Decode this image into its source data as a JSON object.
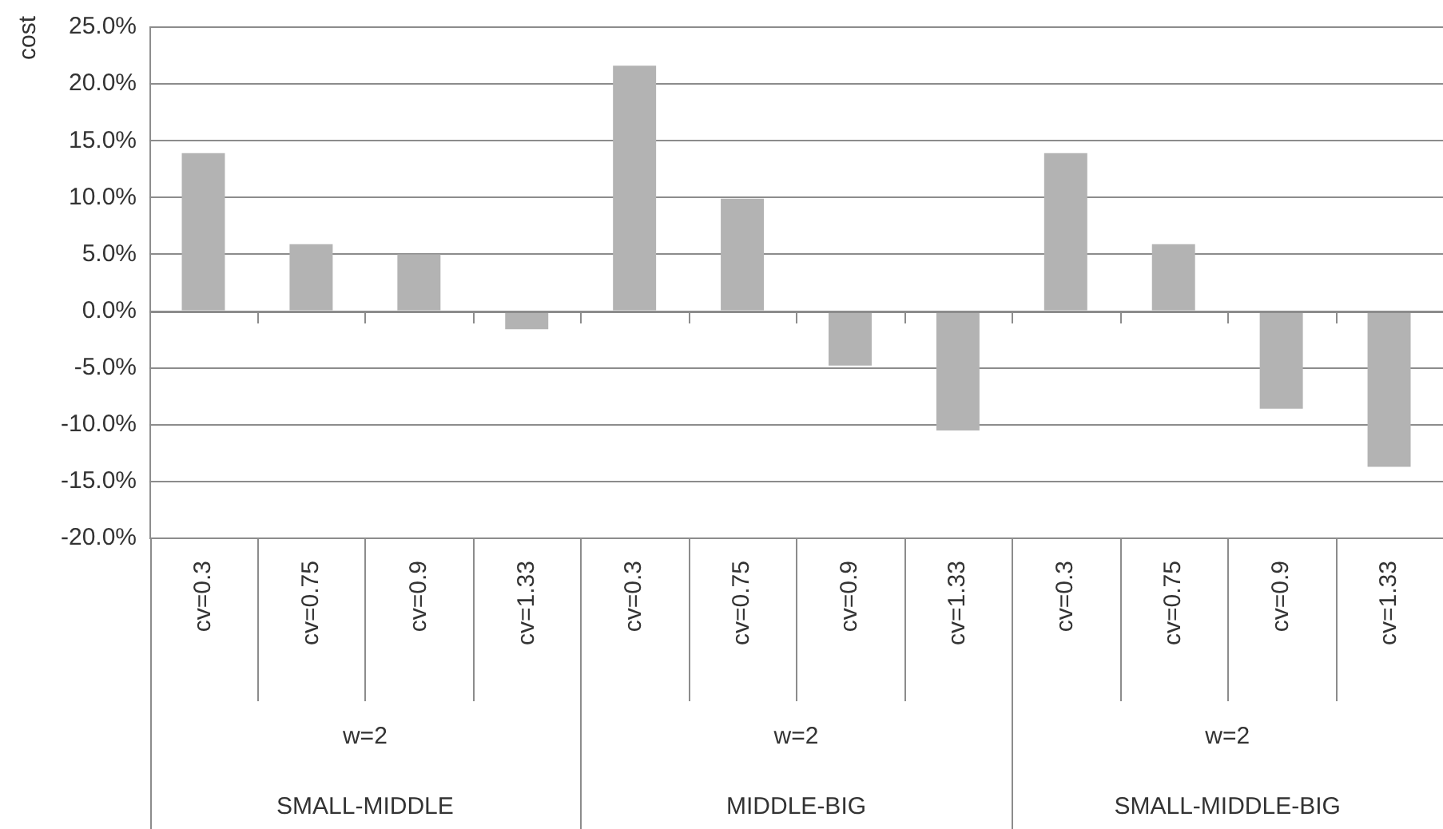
{
  "chart_data": {
    "type": "bar",
    "ylabel": "cost",
    "categories": [
      "cv=0.3",
      "cv=0.75",
      "cv=0.9",
      "cv=1.33",
      "cv=0.3",
      "cv=0.75",
      "cv=0.9",
      "cv=1.33",
      "cv=0.3",
      "cv=0.75",
      "cv=0.9",
      "cv=1.33"
    ],
    "values": [
      13.9,
      5.9,
      5.0,
      -1.6,
      21.6,
      9.9,
      -4.8,
      -10.5,
      13.9,
      5.9,
      -8.6,
      -13.7
    ],
    "color": "#b3b3b3",
    "ylim": [
      -20,
      25
    ],
    "yticks": [
      {
        "value": -20,
        "label": "-20.0%"
      },
      {
        "value": -15,
        "label": "-15.0%"
      },
      {
        "value": -10,
        "label": "-10.0%"
      },
      {
        "value": -5,
        "label": "-5.0%"
      },
      {
        "value": 0,
        "label": "0.0%"
      },
      {
        "value": 5,
        "label": "5.0%"
      },
      {
        "value": 10,
        "label": "10.0%"
      },
      {
        "value": 15,
        "label": "15.0%"
      },
      {
        "value": 20,
        "label": "20.0%"
      },
      {
        "value": 25,
        "label": "25.0%"
      }
    ],
    "grid": "y",
    "annotations": [
      "w=2",
      "w=2",
      "w=2",
      "SMALL-MIDDLE",
      "MIDDLE-BIG",
      "SMALL-MIDDLE-BIG"
    ]
  }
}
